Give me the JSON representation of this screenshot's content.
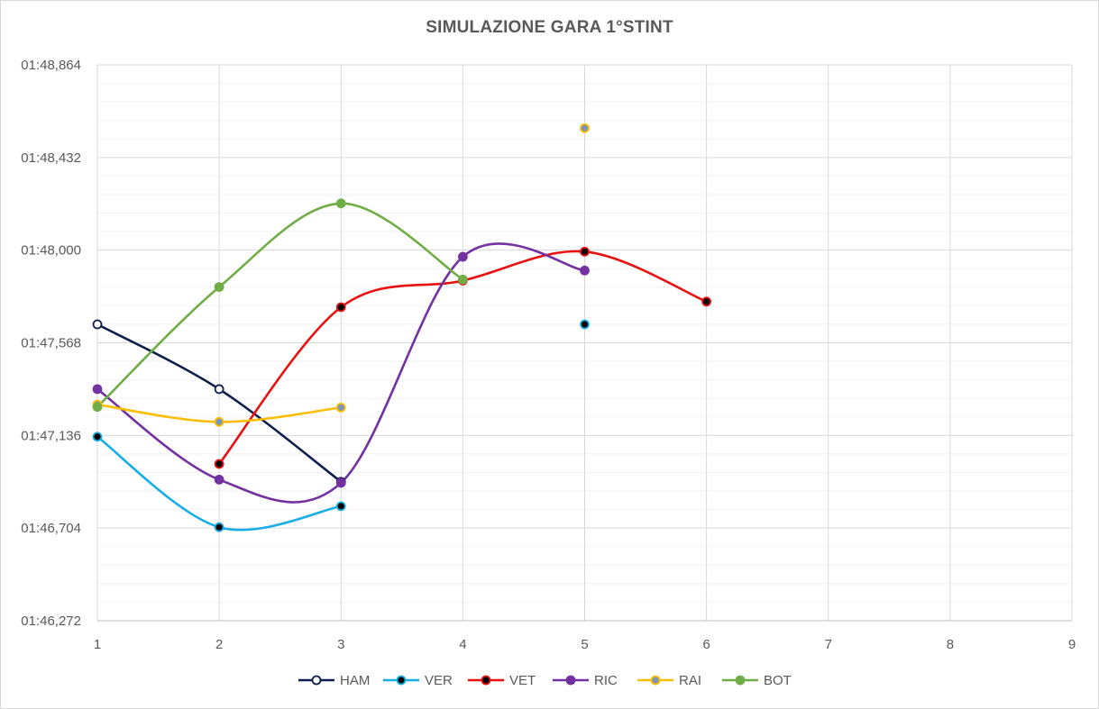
{
  "chart_data": {
    "type": "line",
    "title": "SIMULAZIONE GARA 1°STINT",
    "xlabel": "",
    "ylabel": "",
    "xlim": [
      1,
      9
    ],
    "x_ticks": [
      1,
      2,
      3,
      4,
      5,
      6,
      7,
      8,
      9
    ],
    "ylim": [
      106.272,
      108.864
    ],
    "y_ticks": [
      106.272,
      106.704,
      107.136,
      107.568,
      108.0,
      108.432,
      108.864
    ],
    "y_tick_labels": [
      "01:46,272",
      "01:46,704",
      "01:47,136",
      "01:47,568",
      "01:48,000",
      "01:48,432",
      "01:48,864"
    ],
    "grid": true,
    "legend_position": "bottom",
    "smooth": true,
    "series": [
      {
        "name": "HAM",
        "color": "#0d1f4c",
        "marker_fill": "#ffffff",
        "marker_stroke": "#0d1f4c",
        "points": [
          [
            1,
            107.654
          ],
          [
            2,
            107.352
          ],
          [
            3,
            106.92
          ]
        ]
      },
      {
        "name": "VER",
        "color": "#16aee6",
        "marker_fill": "#000000",
        "marker_stroke": "#16aee6",
        "points": [
          [
            1,
            107.13
          ],
          [
            2,
            106.708
          ],
          [
            3,
            106.806
          ],
          [
            5,
            107.654
          ]
        ]
      },
      {
        "name": "VET",
        "color": "#e8100f",
        "marker_fill": "#000000",
        "marker_stroke": "#e8100f",
        "points": [
          [
            2,
            107.003
          ],
          [
            3,
            107.734
          ],
          [
            4,
            107.858
          ],
          [
            5,
            107.993
          ],
          [
            6,
            107.76
          ]
        ]
      },
      {
        "name": "RIC",
        "color": "#7431a2",
        "marker_fill": "#7431a2",
        "marker_stroke": "#7431a2",
        "points": [
          [
            1,
            107.352
          ],
          [
            2,
            106.93
          ],
          [
            3,
            106.915
          ],
          [
            4,
            107.969
          ],
          [
            5,
            107.905
          ]
        ]
      },
      {
        "name": "RAI",
        "color": "#fbbd00",
        "marker_fill": "#7e95b8",
        "marker_stroke": "#fbbd00",
        "points": [
          [
            1,
            107.28
          ],
          [
            2,
            107.199
          ],
          [
            3,
            107.266
          ],
          [
            5,
            108.569
          ]
        ]
      },
      {
        "name": "BOT",
        "color": "#70ad47",
        "marker_fill": "#70ad47",
        "marker_stroke": "#70ad47",
        "points": [
          [
            1,
            107.269
          ],
          [
            2,
            107.828
          ],
          [
            3,
            108.218
          ],
          [
            4,
            107.863
          ]
        ]
      }
    ]
  }
}
